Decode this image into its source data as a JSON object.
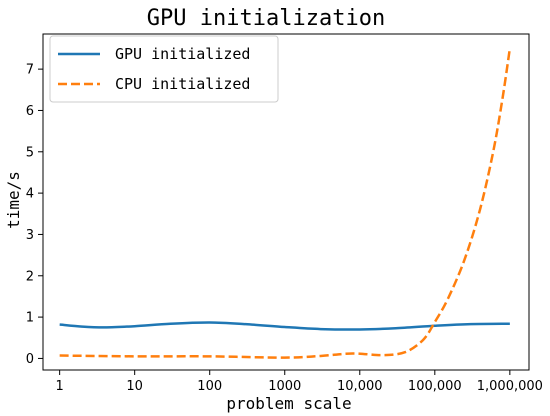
{
  "chart_data": {
    "type": "line",
    "title": "GPU initialization",
    "xlabel": "problem scale",
    "ylabel": "time/s",
    "x_scale": "log",
    "xlim": [
      0.6,
      1800000
    ],
    "ylim": [
      -0.28,
      7.85
    ],
    "x_ticks": [
      {
        "value": 1,
        "label": "1"
      },
      {
        "value": 10,
        "label": "10"
      },
      {
        "value": 100,
        "label": "100"
      },
      {
        "value": 1000,
        "label": "1000"
      },
      {
        "value": 10000,
        "label": "10,000"
      },
      {
        "value": 100000,
        "label": "100,000"
      },
      {
        "value": 1000000,
        "label": "1,000,000"
      }
    ],
    "y_ticks": [
      {
        "value": 0,
        "label": "0"
      },
      {
        "value": 1,
        "label": "1"
      },
      {
        "value": 2,
        "label": "2"
      },
      {
        "value": 3,
        "label": "3"
      },
      {
        "value": 4,
        "label": "4"
      },
      {
        "value": 5,
        "label": "5"
      },
      {
        "value": 6,
        "label": "6"
      },
      {
        "value": 7,
        "label": "7"
      }
    ],
    "grid": false,
    "legend_position": "top-left",
    "series": [
      {
        "name": "GPU initialized",
        "color": "#1f77b4",
        "style": "solid",
        "points": [
          [
            1,
            0.82
          ],
          [
            2,
            0.77
          ],
          [
            4,
            0.75
          ],
          [
            10,
            0.78
          ],
          [
            30,
            0.84
          ],
          [
            100,
            0.87
          ],
          [
            300,
            0.83
          ],
          [
            1000,
            0.76
          ],
          [
            3000,
            0.71
          ],
          [
            10000,
            0.7
          ],
          [
            30000,
            0.73
          ],
          [
            100000,
            0.79
          ],
          [
            300000,
            0.83
          ],
          [
            1000000,
            0.84
          ]
        ]
      },
      {
        "name": "CPU initialized",
        "color": "#ff7f0e",
        "style": "dashed",
        "points": [
          [
            1,
            0.07
          ],
          [
            10,
            0.05
          ],
          [
            100,
            0.05
          ],
          [
            1000,
            0.02
          ],
          [
            3000,
            0.06
          ],
          [
            8000,
            0.12
          ],
          [
            20000,
            0.08
          ],
          [
            40000,
            0.15
          ],
          [
            70000,
            0.45
          ],
          [
            100000,
            0.88
          ],
          [
            150000,
            1.45
          ],
          [
            250000,
            2.4
          ],
          [
            400000,
            3.6
          ],
          [
            600000,
            5.0
          ],
          [
            800000,
            6.3
          ],
          [
            1000000,
            7.5
          ]
        ]
      }
    ]
  }
}
